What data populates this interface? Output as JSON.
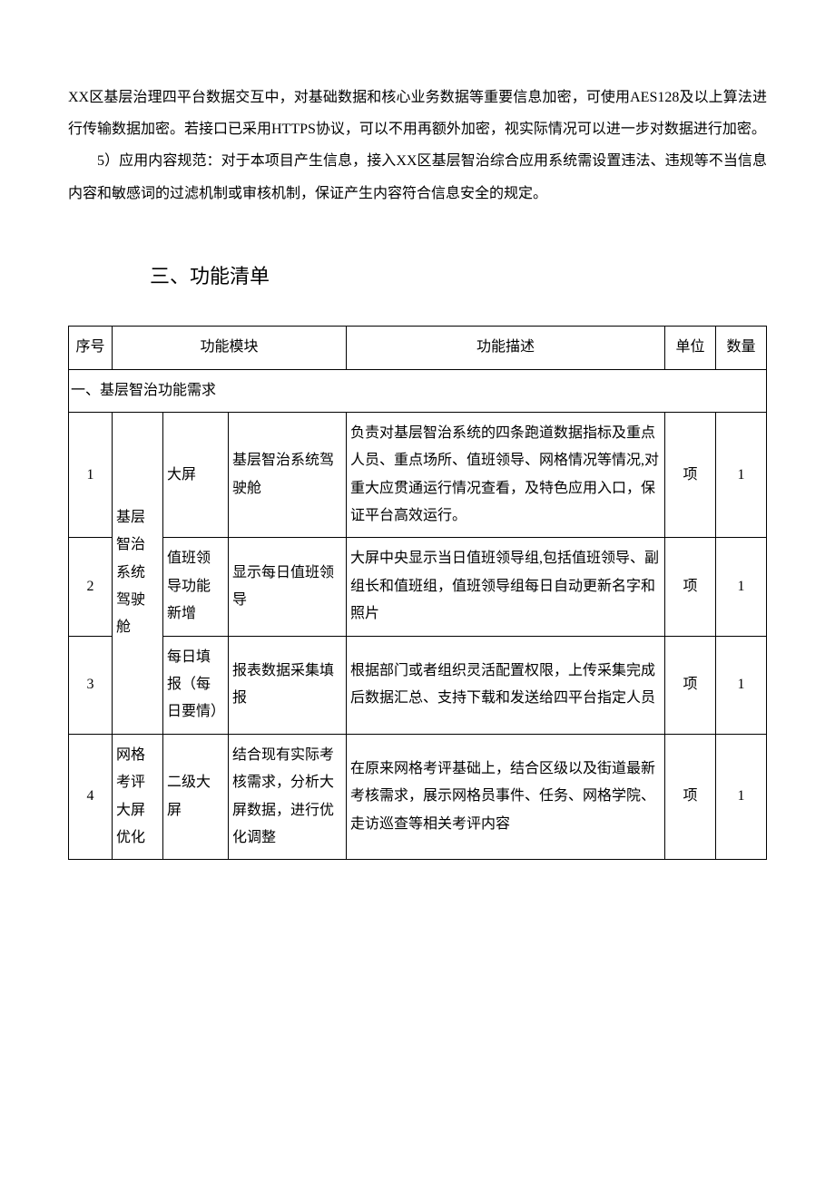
{
  "paragraphs": {
    "p1": "XX区基层治理四平台数据交互中，对基础数据和核心业务数据等重要信息加密，可使用AES128及以上算法进行传输数据加密。若接口已采用HTTPS协议，可以不用再额外加密，视实际情况可以进一步对数据进行加密。",
    "p2": "5）应用内容规范：对于本项目产生信息，接入XX区基层智治综合应用系统需设置违法、违规等不当信息内容和敏感词的过滤机制或审核机制，保证产生内容符合信息安全的规定。"
  },
  "heading": "三、功能清单",
  "table": {
    "headers": {
      "seq": "序号",
      "module": "功能模块",
      "desc": "功能描述",
      "unit": "单位",
      "qty": "数量"
    },
    "section1": "一、基层智治功能需求",
    "group1": {
      "mod1": "基层智治系统驾驶舱",
      "r1": {
        "seq": "1",
        "mod2": "大屏",
        "mod3": "基层智治系统驾驶舱",
        "desc": "负责对基层智治系统的四条跑道数据指标及重点人员、重点场所、值班领导、网格情况等情况,对重大应贯通运行情况查看，及特色应用入口，保证平台高效运行。",
        "unit": "项",
        "qty": "1"
      },
      "r2": {
        "seq": "2",
        "mod2": "值班领导功能新增",
        "mod3": "显示每日值班领导",
        "desc": "大屏中央显示当日值班领导组,包括值班领导、副组长和值班组，值班领导组每日自动更新名字和照片",
        "unit": "项",
        "qty": "1"
      },
      "r3": {
        "seq": "3",
        "mod2": "每日填报（每日要情）",
        "mod3": "报表数据采集填报",
        "desc": "根据部门或者组织灵活配置权限，上传采集完成后数据汇总、支持下载和发送给四平台指定人员",
        "unit": "项",
        "qty": "1"
      }
    },
    "group2": {
      "r4": {
        "seq": "4",
        "mod1": "网格考评大屏优化",
        "mod2": "二级大屏",
        "mod3": "结合现有实际考核需求，分析大屏数据，进行优化调整",
        "desc": "在原来网格考评基础上，结合区级以及街道最新考核需求，展示网格员事件、任务、网格学院、走访巡查等相关考评内容",
        "unit": "项",
        "qty": "1"
      }
    }
  }
}
